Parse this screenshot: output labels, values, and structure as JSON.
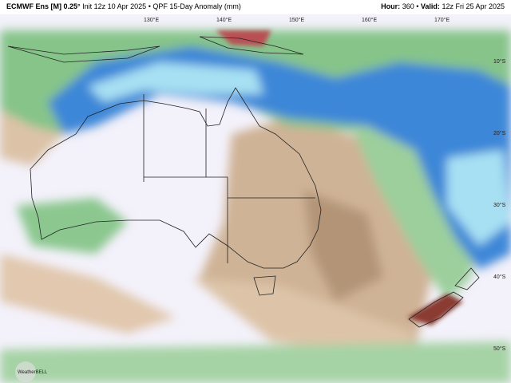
{
  "header": {
    "model": "ECMWF Ens [M] 0.25°",
    "init": "Init 12z 10 Apr 2025",
    "separator": "•",
    "product": "QPF 15-Day Anomaly (mm)",
    "hour_label": "Hour:",
    "hour_value": "360",
    "valid_label": "Valid:",
    "valid_value": "12z Fri 25 Apr 2025"
  },
  "longitude_labels": [
    "130°E",
    "140°E",
    "150°E",
    "160°E",
    "170°E"
  ],
  "latitude_labels": [
    "10°S",
    "20°S",
    "30°S",
    "40°S",
    "50°S"
  ],
  "logo": "WeatherBELL"
}
